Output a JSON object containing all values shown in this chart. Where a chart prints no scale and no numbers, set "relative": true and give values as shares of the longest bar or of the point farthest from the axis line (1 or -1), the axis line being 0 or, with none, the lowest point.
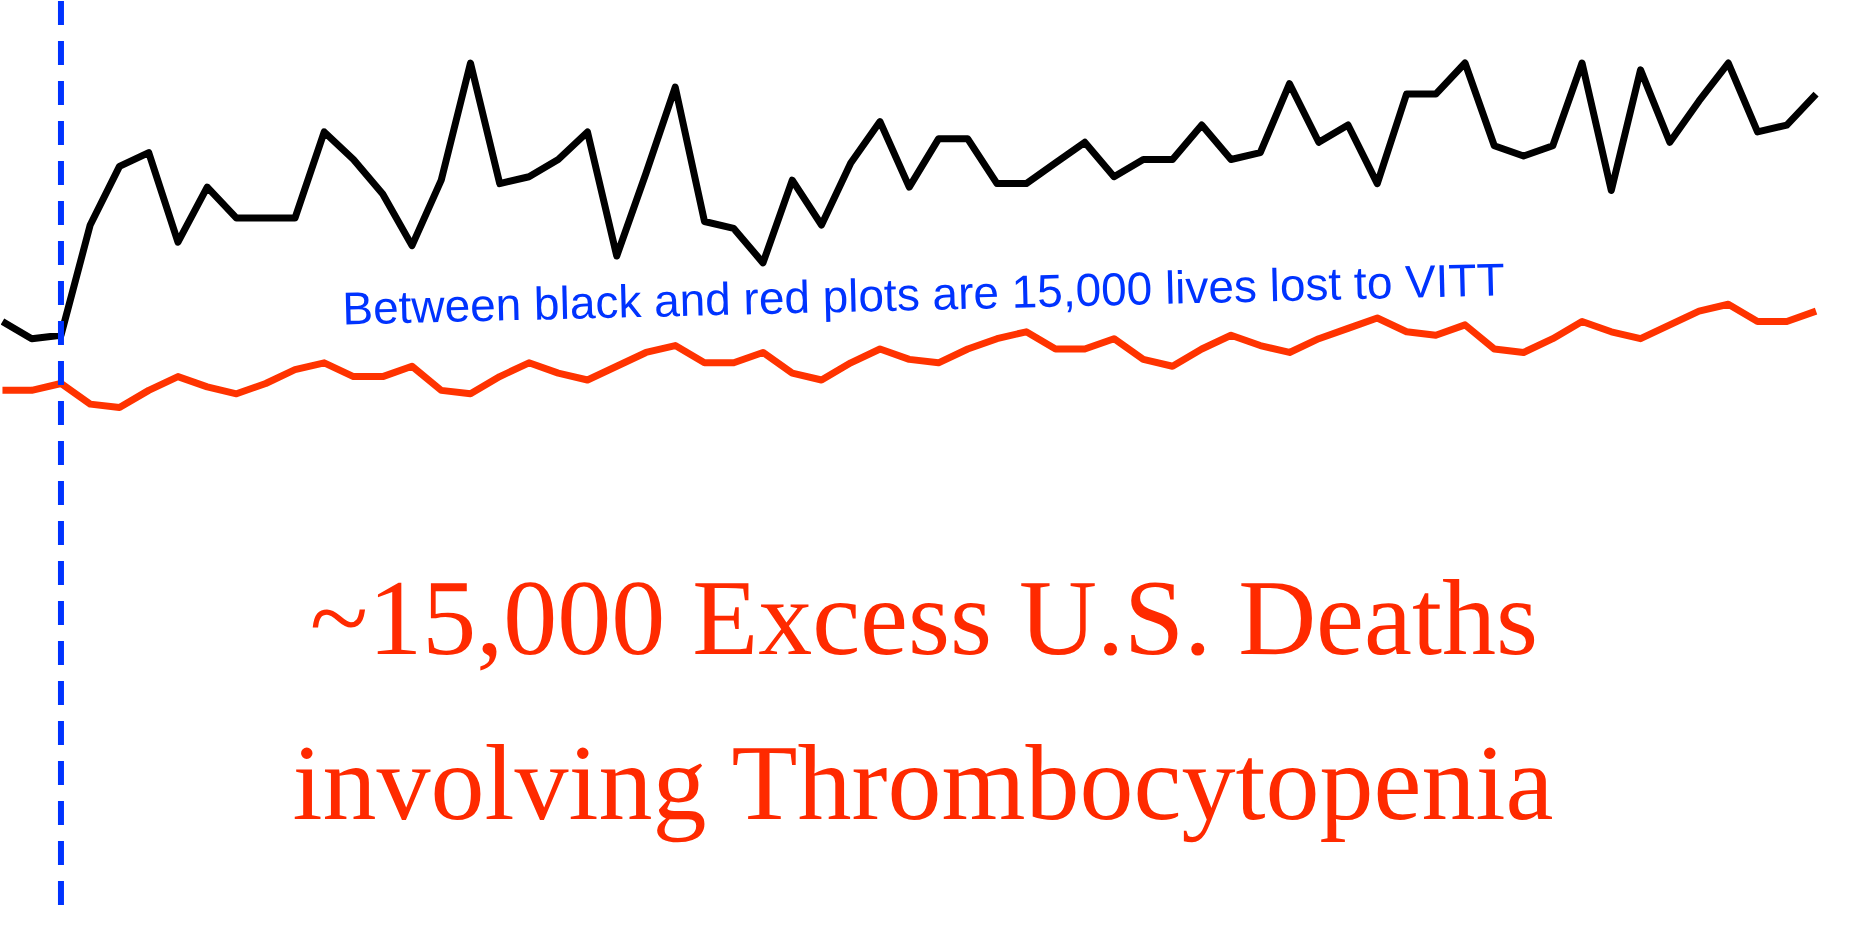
{
  "chart_data": {
    "type": "line",
    "relative": true,
    "title": "~15,000 Excess U.S. Deaths involving Thrombocytopenia",
    "grid": false,
    "line_style": "solid",
    "marker": "none",
    "categories": [
      null,
      null,
      null,
      null,
      null,
      null,
      null,
      null,
      null,
      null,
      null,
      null,
      null,
      null,
      null,
      null,
      null,
      null,
      null,
      null,
      null,
      null,
      null,
      null,
      null,
      null,
      null,
      null,
      null,
      null,
      null,
      null,
      null,
      null,
      null,
      null,
      null,
      null,
      null,
      null,
      null,
      null,
      null,
      null,
      null,
      null,
      null,
      null,
      null,
      null,
      null,
      null,
      null,
      null,
      null,
      null,
      null,
      null,
      null,
      null,
      null,
      null,
      null
    ],
    "series": [
      {
        "color": "#000000",
        "values": [
          0.25,
          0.2,
          0.21,
          0.53,
          0.7,
          0.74,
          0.48,
          0.64,
          0.55,
          0.55,
          0.55,
          0.8,
          0.72,
          0.62,
          0.47,
          0.66,
          1.0,
          0.65,
          0.67,
          0.72,
          0.8,
          0.44,
          0.68,
          0.93,
          0.54,
          0.52,
          0.42,
          0.66,
          0.53,
          0.71,
          0.83,
          0.64,
          0.78,
          0.78,
          0.65,
          0.65,
          0.71,
          0.77,
          0.67,
          0.72,
          0.72,
          0.82,
          0.72,
          0.74,
          0.94,
          0.77,
          0.82,
          0.65,
          0.91,
          0.91,
          1.0,
          0.76,
          0.73,
          0.76,
          1.0,
          0.63,
          0.98,
          0.77,
          0.89,
          1.0,
          0.8,
          0.82,
          0.91
        ]
      },
      {
        "color": "#ff3300",
        "values": [
          0.05,
          0.05,
          0.07,
          0.01,
          0.0,
          0.05,
          0.09,
          0.06,
          0.04,
          0.07,
          0.11,
          0.13,
          0.09,
          0.09,
          0.12,
          0.05,
          0.04,
          0.09,
          0.13,
          0.1,
          0.08,
          0.12,
          0.16,
          0.18,
          0.13,
          0.13,
          0.16,
          0.1,
          0.08,
          0.13,
          0.17,
          0.14,
          0.13,
          0.17,
          0.2,
          0.22,
          0.17,
          0.17,
          0.2,
          0.14,
          0.12,
          0.17,
          0.21,
          0.18,
          0.16,
          0.2,
          0.23,
          0.26,
          0.22,
          0.21,
          0.24,
          0.17,
          0.16,
          0.2,
          0.25,
          0.22,
          0.2,
          0.24,
          0.28,
          0.3,
          0.25,
          0.25,
          0.28
        ]
      }
    ],
    "annotations": [
      "Between black and red plots are 15,000 lives lost to VITT"
    ]
  }
}
